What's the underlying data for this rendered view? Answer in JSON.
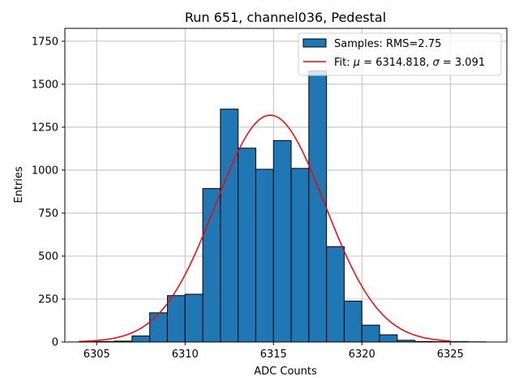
{
  "chart_data": {
    "type": "bar",
    "title": "Run 651, channel036, Pedestal",
    "xlabel": "ADC Counts",
    "ylabel": "Entries",
    "xlim": [
      6303.2,
      6328.2
    ],
    "ylim": [
      0,
      1825
    ],
    "xticks": [
      6305,
      6310,
      6315,
      6320,
      6325
    ],
    "yticks": [
      0,
      250,
      500,
      750,
      1000,
      1250,
      1500,
      1750
    ],
    "grid": true,
    "legend_position": "top-right",
    "colors": {
      "bars": "#1f77b4",
      "edges": "#000000",
      "fit": "#ff0000",
      "grid": "#b0b0b0"
    },
    "histogram": {
      "name": "Samples: RMS=2.75",
      "bin_edges": [
        6304,
        6305,
        6306,
        6307,
        6308,
        6309,
        6310,
        6311,
        6312,
        6313,
        6314,
        6315,
        6316,
        6317,
        6318,
        6319,
        6320,
        6321,
        6322,
        6323,
        6324,
        6325,
        6326,
        6327
      ],
      "counts": [
        2,
        3,
        5,
        35,
        170,
        270,
        278,
        893,
        1355,
        1128,
        1005,
        1172,
        1010,
        1578,
        555,
        238,
        98,
        42,
        10,
        3,
        2,
        2,
        1
      ]
    },
    "fit": {
      "name": "Fit: μ = 6314.818, σ = 3.091",
      "type": "gaussian",
      "mu": 6314.818,
      "sigma": 3.091,
      "amplitude": 1320,
      "x_range": [
        6304,
        6325
      ]
    }
  },
  "legend": {
    "hist_label": "Samples: RMS=2.75",
    "fit_label_prefix": "Fit: ",
    "mu_symbol": "μ",
    "fit_label_mid": " = 6314.818, ",
    "sigma_symbol": "σ",
    "fit_label_end": " = 3.091"
  }
}
